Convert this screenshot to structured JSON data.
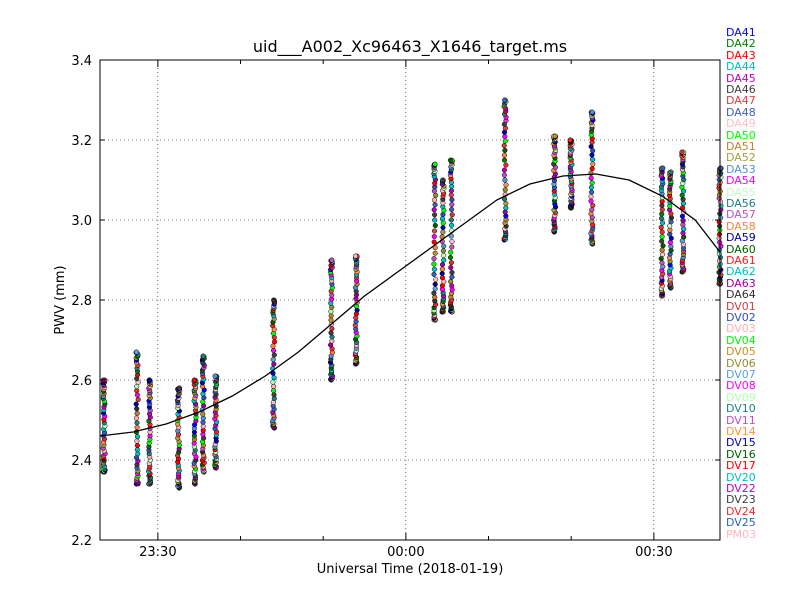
{
  "chart_data": {
    "type": "scatter",
    "title": "uid___A002_Xc96463_X1646_target.ms",
    "xlabel": "Universal Time (2018-01-19)",
    "ylabel": "PWV (mm)",
    "xlim": [
      "23:23:00",
      "00:38:00"
    ],
    "ylim": [
      2.2,
      3.4
    ],
    "y_ticks": [
      2.2,
      2.4,
      2.6,
      2.8,
      3.0,
      3.2,
      3.4
    ],
    "y_tick_labels": [
      "2.2",
      "2.4",
      "2.6",
      "2.8",
      "3.0",
      "3.2",
      "3.4"
    ],
    "x_ticks": [
      "23:30",
      "00:00",
      "00:30"
    ],
    "grid": true,
    "legend_position": "right-outside",
    "antennas": [
      {
        "name": "DA41",
        "color": "#0000ff"
      },
      {
        "name": "DA42",
        "color": "#008000"
      },
      {
        "name": "DA43",
        "color": "#ff0000"
      },
      {
        "name": "DA44",
        "color": "#00bfbf"
      },
      {
        "name": "DA45",
        "color": "#bf00bf"
      },
      {
        "name": "DA46",
        "color": "#404040"
      },
      {
        "name": "DA47",
        "color": "#e04040"
      },
      {
        "name": "DA48",
        "color": "#4060c0"
      },
      {
        "name": "DA49",
        "color": "#ffc0cb"
      },
      {
        "name": "DA50",
        "color": "#00ff00"
      },
      {
        "name": "DA51",
        "color": "#c08030"
      },
      {
        "name": "DA52",
        "color": "#a0a040"
      },
      {
        "name": "DA53",
        "color": "#5090e0"
      },
      {
        "name": "DA54",
        "color": "#ff00ff"
      },
      {
        "name": "DA55",
        "color": "#c0ffc0"
      },
      {
        "name": "DA56",
        "color": "#208080"
      },
      {
        "name": "DA57",
        "color": "#c050c0"
      },
      {
        "name": "DA58",
        "color": "#ff8040"
      },
      {
        "name": "DA59",
        "color": "#0000a0"
      },
      {
        "name": "DA60",
        "color": "#006000"
      },
      {
        "name": "DA61",
        "color": "#ff2020"
      },
      {
        "name": "DA62",
        "color": "#00c0c0"
      },
      {
        "name": "DA63",
        "color": "#a000a0"
      },
      {
        "name": "DA64",
        "color": "#303030"
      },
      {
        "name": "DV01",
        "color": "#d04040"
      },
      {
        "name": "DV02",
        "color": "#3050b0"
      },
      {
        "name": "DV03",
        "color": "#ffb0b0"
      },
      {
        "name": "DV04",
        "color": "#00ff00"
      },
      {
        "name": "DV05",
        "color": "#c09020"
      },
      {
        "name": "DV06",
        "color": "#909030"
      },
      {
        "name": "DV07",
        "color": "#60a0e0"
      },
      {
        "name": "DV08",
        "color": "#ff00ff"
      },
      {
        "name": "DV09",
        "color": "#b0ffb0"
      },
      {
        "name": "DV10",
        "color": "#208080"
      },
      {
        "name": "DV11",
        "color": "#c050c0"
      },
      {
        "name": "DV14",
        "color": "#ff9050"
      },
      {
        "name": "DV15",
        "color": "#0000c0"
      },
      {
        "name": "DV16",
        "color": "#006000"
      },
      {
        "name": "DV17",
        "color": "#ff0000"
      },
      {
        "name": "DV20",
        "color": "#00c0c0"
      },
      {
        "name": "DV22",
        "color": "#c000c0"
      },
      {
        "name": "DV23",
        "color": "#404040"
      },
      {
        "name": "DV24",
        "color": "#e03030"
      },
      {
        "name": "DV25",
        "color": "#3060c0"
      },
      {
        "name": "PM03",
        "color": "#ffb6c1"
      }
    ],
    "model_curve": {
      "x": [
        "23:23:00",
        "23:27:00",
        "23:31:00",
        "23:35:00",
        "23:39:00",
        "23:43:00",
        "23:47:00",
        "23:51:00",
        "23:55:00",
        "23:59:00",
        "00:03:00",
        "00:07:00",
        "00:11:00",
        "00:15:00",
        "00:19:00",
        "00:23:00",
        "00:27:00",
        "00:31:00",
        "00:35:00",
        "00:38:00"
      ],
      "y": [
        2.46,
        2.47,
        2.49,
        2.52,
        2.56,
        2.61,
        2.67,
        2.74,
        2.81,
        2.87,
        2.93,
        2.99,
        3.05,
        3.09,
        3.11,
        3.115,
        3.1,
        3.06,
        3.0,
        2.92
      ]
    },
    "scans": [
      {
        "time": "23:23:30",
        "ymin": 2.37,
        "ymax": 2.6
      },
      {
        "time": "23:27:30",
        "ymin": 2.34,
        "ymax": 2.67
      },
      {
        "time": "23:29:00",
        "ymin": 2.34,
        "ymax": 2.6
      },
      {
        "time": "23:32:30",
        "ymin": 2.33,
        "ymax": 2.58
      },
      {
        "time": "23:34:30",
        "ymin": 2.34,
        "ymax": 2.6
      },
      {
        "time": "23:35:30",
        "ymin": 2.37,
        "ymax": 2.66
      },
      {
        "time": "23:37:00",
        "ymin": 2.38,
        "ymax": 2.61
      },
      {
        "time": "23:44:00",
        "ymin": 2.48,
        "ymax": 2.8
      },
      {
        "time": "23:51:00",
        "ymin": 2.6,
        "ymax": 2.9
      },
      {
        "time": "23:54:00",
        "ymin": 2.64,
        "ymax": 2.91
      },
      {
        "time": "00:03:30",
        "ymin": 2.75,
        "ymax": 3.14
      },
      {
        "time": "00:04:30",
        "ymin": 2.77,
        "ymax": 3.1
      },
      {
        "time": "00:05:30",
        "ymin": 2.77,
        "ymax": 3.15
      },
      {
        "time": "00:12:00",
        "ymin": 2.95,
        "ymax": 3.3
      },
      {
        "time": "00:18:00",
        "ymin": 2.97,
        "ymax": 3.21
      },
      {
        "time": "00:20:00",
        "ymin": 3.03,
        "ymax": 3.2
      },
      {
        "time": "00:22:30",
        "ymin": 2.94,
        "ymax": 3.27
      },
      {
        "time": "00:31:00",
        "ymin": 2.81,
        "ymax": 3.13
      },
      {
        "time": "00:32:00",
        "ymin": 2.83,
        "ymax": 3.12
      },
      {
        "time": "00:33:30",
        "ymin": 2.87,
        "ymax": 3.17
      },
      {
        "time": "00:38:00",
        "ymin": 2.84,
        "ymax": 3.13
      }
    ]
  }
}
